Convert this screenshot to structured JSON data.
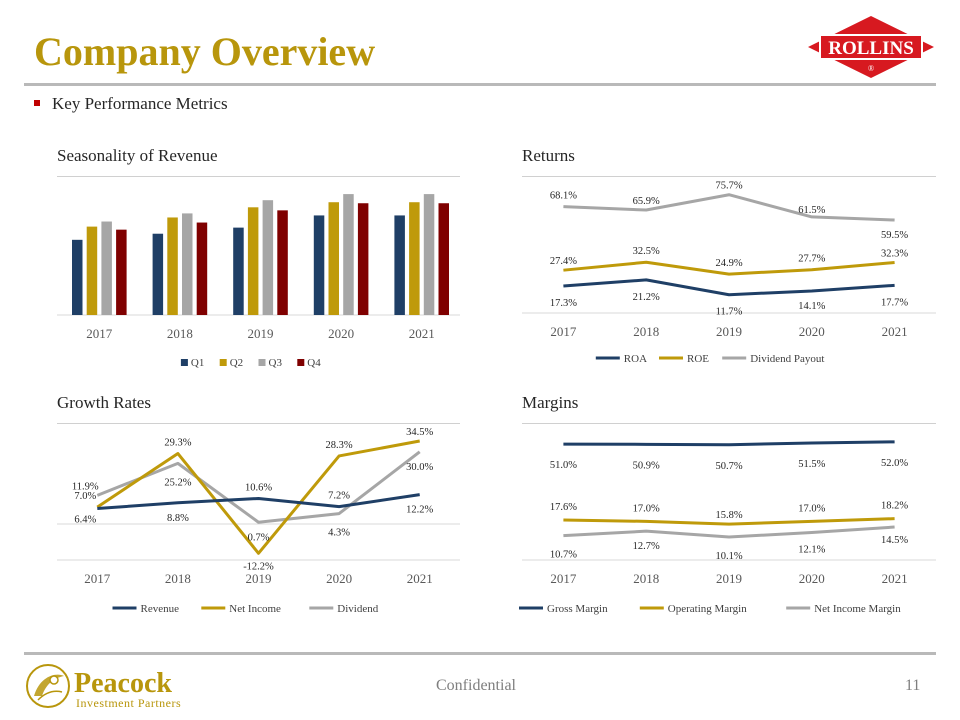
{
  "page": {
    "title": "Company Overview",
    "bullet": "Key Performance Metrics",
    "footer_text": "Confidential",
    "page_number": "11"
  },
  "logo": {
    "text": "ROLLINS",
    "registered": "®",
    "color": "#d71920"
  },
  "brand": {
    "name": "Peacock",
    "subtitle": "Investment Partners",
    "color": "#b8960c"
  },
  "colors": {
    "navy": "#1f3f66",
    "gold": "#bf9a0a",
    "gray": "#a6a6a6",
    "maroon": "#7f0000",
    "accent": "#b8960c",
    "rule": "#b9b9b9"
  },
  "chart_data": [
    {
      "id": "seasonality",
      "type": "bar",
      "title": "Seasonality of Revenue",
      "categories": [
        "2017",
        "2018",
        "2019",
        "2020",
        "2021"
      ],
      "series": [
        {
          "name": "Q1",
          "color": "#1f3f66",
          "values": [
            74,
            80,
            86,
            98,
            98
          ]
        },
        {
          "name": "Q2",
          "color": "#bf9a0a",
          "values": [
            87,
            96,
            106,
            111,
            111
          ]
        },
        {
          "name": "Q3",
          "color": "#a6a6a6",
          "values": [
            92,
            100,
            113,
            119,
            119
          ]
        },
        {
          "name": "Q4",
          "color": "#7f0000",
          "values": [
            84,
            91,
            103,
            110,
            110
          ]
        }
      ],
      "ylim": [
        0,
        125
      ],
      "legend": "bottom"
    },
    {
      "id": "returns",
      "type": "line",
      "title": "Returns",
      "categories": [
        "2017",
        "2018",
        "2019",
        "2020",
        "2021"
      ],
      "series": [
        {
          "name": "ROA",
          "color": "#1f3f66",
          "values": [
            17.3,
            21.2,
            11.7,
            14.1,
            17.7
          ],
          "labels": [
            "17.3%",
            "21.2%",
            "11.7%",
            "14.1%",
            "17.7%"
          ]
        },
        {
          "name": "ROE",
          "color": "#bf9a0a",
          "values": [
            27.4,
            32.5,
            24.9,
            27.7,
            32.3
          ],
          "labels": [
            "27.4%",
            "32.5%",
            "24.9%",
            "27.7%",
            "32.3%"
          ]
        },
        {
          "name": "Dividend Payout",
          "color": "#a6a6a6",
          "values": [
            68.1,
            65.9,
            75.7,
            61.5,
            59.5
          ],
          "labels": [
            "68.1%",
            "65.9%",
            "75.7%",
            "61.5%",
            "59.5%"
          ]
        }
      ],
      "ylim": [
        0,
        80
      ],
      "legend": "bottom"
    },
    {
      "id": "growth",
      "type": "line",
      "title": "Growth Rates",
      "categories": [
        "2017",
        "2018",
        "2019",
        "2020",
        "2021"
      ],
      "series": [
        {
          "name": "Revenue",
          "color": "#1f3f66",
          "values": [
            6.4,
            8.8,
            10.6,
            7.2,
            12.2
          ],
          "labels": [
            "6.4%",
            "8.8%",
            "10.6%",
            "7.2%",
            "12.2%"
          ]
        },
        {
          "name": "Net Income",
          "color": "#bf9a0a",
          "values": [
            7.0,
            29.3,
            -12.2,
            28.3,
            34.5
          ],
          "labels": [
            "7.0%",
            "29.3%",
            "-12.2%",
            "28.3%",
            "34.5%"
          ]
        },
        {
          "name": "Dividend",
          "color": "#a6a6a6",
          "values": [
            11.9,
            25.2,
            0.7,
            4.3,
            30.0
          ],
          "labels": [
            "11.9%",
            "25.2%",
            "0.7%",
            "4.3%",
            "30.0%"
          ]
        }
      ],
      "ylim": [
        -15,
        37
      ],
      "legend": "bottom"
    },
    {
      "id": "margins",
      "type": "line",
      "title": "Margins",
      "categories": [
        "2017",
        "2018",
        "2019",
        "2020",
        "2021"
      ],
      "series": [
        {
          "name": "Gross Margin",
          "color": "#1f3f66",
          "values": [
            51.0,
            50.9,
            50.7,
            51.5,
            52.0
          ],
          "labels": [
            "51.0%",
            "50.9%",
            "50.7%",
            "51.5%",
            "52.0%"
          ]
        },
        {
          "name": "Operating Margin",
          "color": "#bf9a0a",
          "values": [
            17.6,
            17.0,
            15.8,
            17.0,
            18.2
          ],
          "labels": [
            "17.6%",
            "17.0%",
            "15.8%",
            "17.0%",
            "18.2%"
          ]
        },
        {
          "name": "Net Income Margin",
          "color": "#a6a6a6",
          "values": [
            10.7,
            12.7,
            10.1,
            12.1,
            14.5
          ],
          "labels": [
            "10.7%",
            "12.7%",
            "10.1%",
            "12.1%",
            "14.5%"
          ]
        }
      ],
      "ylim": [
        0,
        55
      ],
      "legend": "bottom"
    }
  ]
}
